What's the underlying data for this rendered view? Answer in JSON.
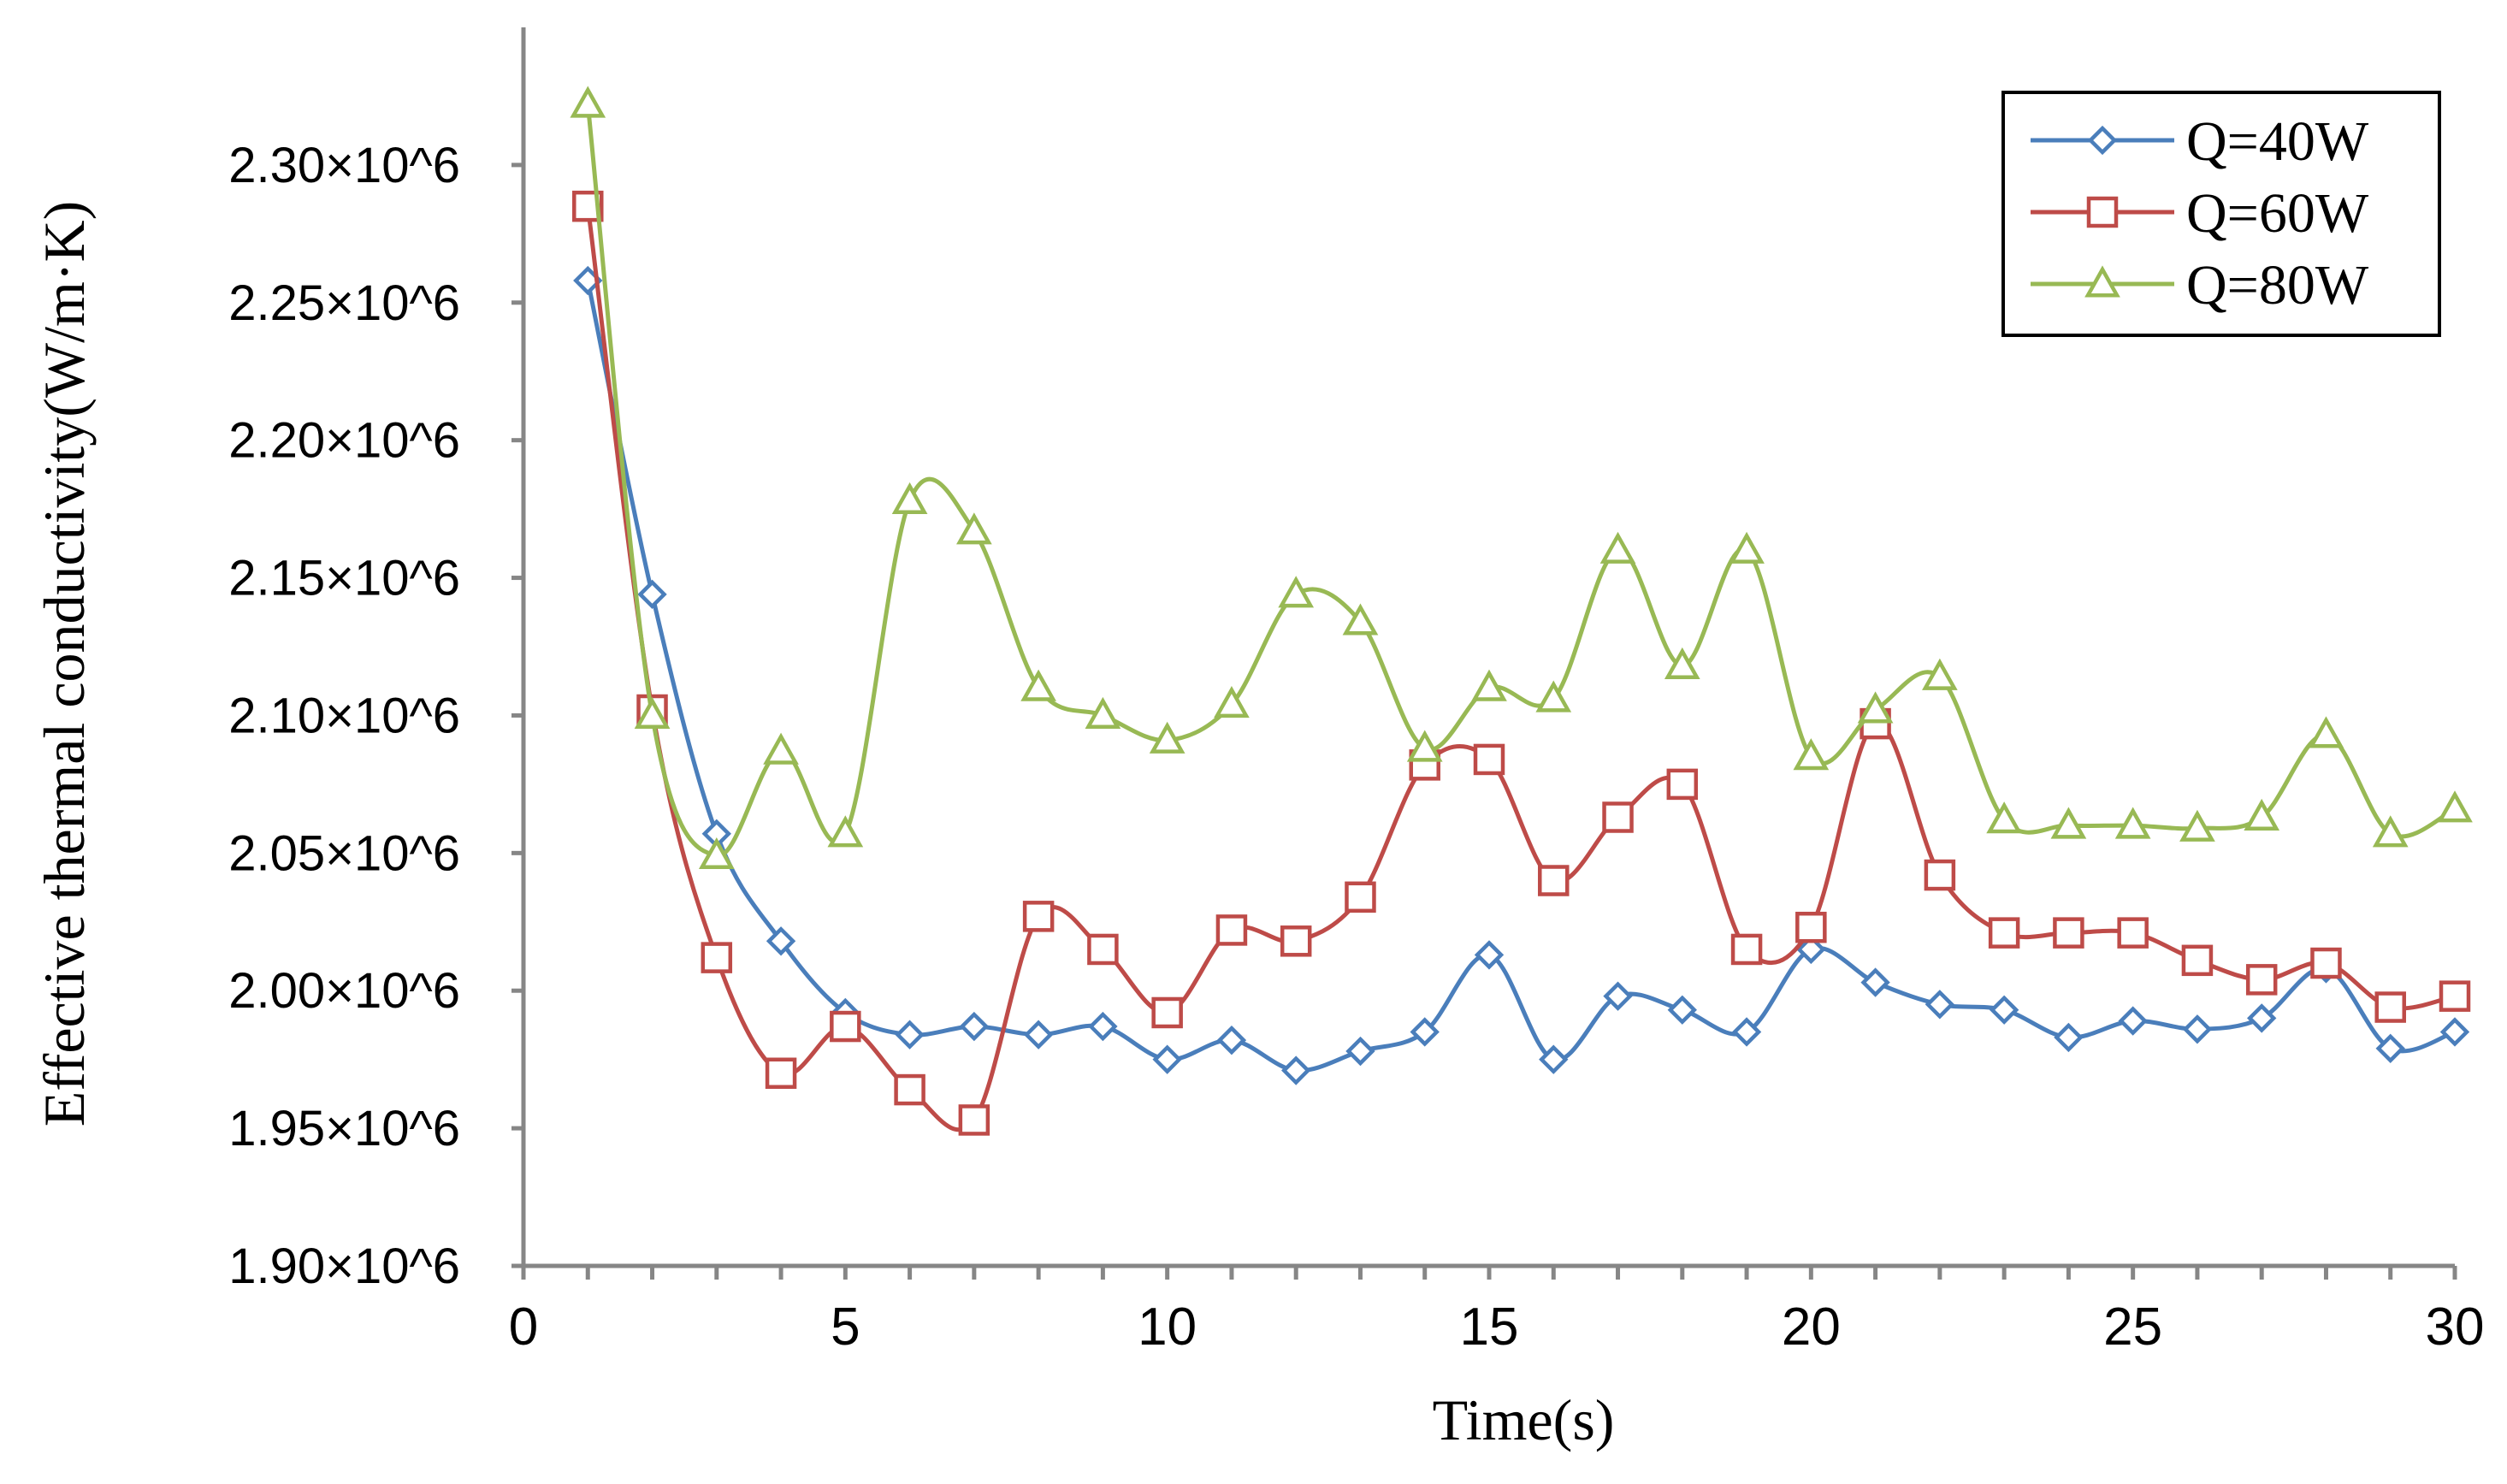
{
  "chart_data": {
    "type": "line",
    "title": "",
    "xlabel": "Time(s)",
    "ylabel": "Effective thermal conductivity(W/m·K)",
    "xlim": [
      0,
      30
    ],
    "ylim": [
      1900000,
      2350000
    ],
    "x_ticks": [
      0,
      5,
      10,
      15,
      20,
      25,
      30
    ],
    "x_tick_labels": [
      "0",
      "5",
      "10",
      "15",
      "20",
      "25",
      "30"
    ],
    "y_ticks": [
      1900000,
      1950000,
      2000000,
      2050000,
      2100000,
      2150000,
      2200000,
      2250000,
      2300000
    ],
    "y_tick_labels": [
      "1.90×10^6",
      "1.95×10^6",
      "2.00×10^6",
      "2.05×10^6",
      "2.10×10^6",
      "2.15×10^6",
      "2.20×10^6",
      "2.25×10^6",
      "2.30×10^6"
    ],
    "grid": false,
    "legend_position": "top-right",
    "x": [
      1,
      2,
      3,
      4,
      5,
      6,
      7,
      8,
      9,
      10,
      11,
      12,
      13,
      14,
      15,
      16,
      17,
      18,
      19,
      20,
      21,
      22,
      23,
      24,
      25,
      26,
      27,
      28,
      29,
      30
    ],
    "series": [
      {
        "name": "Q=40W",
        "color": "#4a7ebb",
        "marker": "diamond",
        "values": [
          2258000,
          2144000,
          2057000,
          2018000,
          1992000,
          1984000,
          1987000,
          1984000,
          1987000,
          1975000,
          1982000,
          1971000,
          1978000,
          1985000,
          2013000,
          1975000,
          1998000,
          1993000,
          1985000,
          2015000,
          2003000,
          1995000,
          1993000,
          1983000,
          1989000,
          1986000,
          1990000,
          2008000,
          1979000,
          1985000
        ]
      },
      {
        "name": "Q=60W",
        "color": "#be4b48",
        "marker": "square",
        "values": [
          2285000,
          2102000,
          2012000,
          1970000,
          1987000,
          1964000,
          1953000,
          2027000,
          2015000,
          1992000,
          2022000,
          2018000,
          2034000,
          2082000,
          2084000,
          2040000,
          2063000,
          2075000,
          2015000,
          2023000,
          2097000,
          2042000,
          2021000,
          2021000,
          2021000,
          2011000,
          2004000,
          2010000,
          1994000,
          1998000
        ]
      },
      {
        "name": "Q=80W",
        "color": "#98b954",
        "marker": "triangle",
        "values": [
          2322000,
          2100000,
          2049000,
          2087000,
          2057000,
          2178000,
          2167000,
          2110000,
          2100000,
          2091000,
          2104000,
          2144000,
          2134000,
          2088000,
          2110000,
          2106000,
          2160000,
          2118000,
          2160000,
          2085000,
          2102000,
          2114000,
          2062000,
          2060000,
          2060000,
          2059000,
          2063000,
          2093000,
          2057000,
          2066000
        ]
      }
    ]
  }
}
